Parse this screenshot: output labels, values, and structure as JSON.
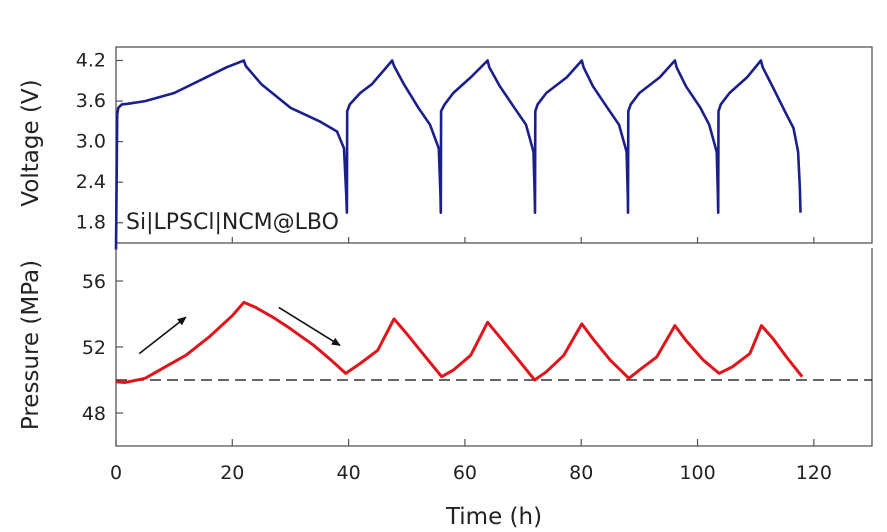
{
  "colors": {
    "voltage": "#1a1f8c",
    "pressure": "#e0151b",
    "axis": "#555555",
    "reference": "#333333"
  },
  "chart_data": [
    {
      "type": "line",
      "panel": "top",
      "xlabel": "",
      "ylabel": "Voltage (V)",
      "xlim": [
        0,
        130
      ],
      "ylim": [
        1.5,
        4.4
      ],
      "yticks": [
        1.8,
        2.4,
        3.0,
        3.6,
        4.2
      ],
      "ytick_labels": [
        "1.8",
        "2.4",
        "3.0",
        "3.6",
        "4.2"
      ],
      "annotation": "Si|LPSCl|NCM@LBO",
      "series": [
        {
          "x": [
            0.0,
            0.2,
            0.4,
            1.0,
            2.0,
            5.0,
            10.0,
            15.0,
            19.0,
            22.0,
            22.3,
            25.0,
            30.0,
            35.0,
            38.0,
            39.2,
            39.6,
            39.7,
            39.75,
            40.2,
            42.0,
            44.0,
            47.5,
            47.8,
            49.5,
            52.0,
            54.0,
            55.5,
            55.8,
            55.85,
            55.9,
            56.5,
            58.0,
            61.0,
            63.9,
            64.2,
            66.0,
            68.5,
            70.5,
            71.8,
            72.0,
            72.05,
            72.1,
            72.5,
            74.0,
            77.5,
            80.1,
            80.4,
            82.0,
            84.5,
            86.5,
            87.8,
            88.0,
            88.05,
            88.1,
            88.5,
            90.0,
            93.5,
            96.1,
            96.4,
            98.0,
            100.5,
            102.0,
            103.3,
            103.5,
            103.55,
            103.6,
            104.0,
            105.5,
            108.5,
            110.9,
            111.2,
            113.0,
            115.0,
            116.5,
            117.3,
            117.6,
            117.7
          ],
          "y": [
            1.4,
            3.4,
            3.5,
            3.55,
            3.56,
            3.6,
            3.72,
            3.93,
            4.1,
            4.2,
            4.12,
            3.85,
            3.5,
            3.3,
            3.15,
            2.9,
            2.2,
            1.95,
            3.45,
            3.55,
            3.72,
            3.85,
            4.2,
            4.12,
            3.85,
            3.5,
            3.25,
            2.9,
            2.2,
            1.95,
            3.45,
            3.55,
            3.72,
            3.95,
            4.2,
            4.1,
            3.82,
            3.5,
            3.25,
            2.85,
            2.2,
            1.95,
            3.45,
            3.55,
            3.72,
            3.95,
            4.2,
            4.1,
            3.82,
            3.5,
            3.25,
            2.85,
            2.2,
            1.95,
            3.45,
            3.55,
            3.72,
            3.95,
            4.2,
            4.1,
            3.82,
            3.5,
            3.25,
            2.85,
            2.2,
            1.95,
            3.45,
            3.55,
            3.72,
            3.95,
            4.2,
            4.1,
            3.8,
            3.45,
            3.2,
            2.85,
            2.3,
            1.95
          ]
        }
      ]
    },
    {
      "type": "line",
      "panel": "bottom",
      "xlabel": "Time (h)",
      "ylabel": "Pressure (MPa)",
      "xlim": [
        0,
        130
      ],
      "ylim": [
        46,
        58
      ],
      "xticks": [
        0,
        20,
        40,
        60,
        80,
        100,
        120
      ],
      "xtick_labels": [
        "0",
        "20",
        "40",
        "60",
        "80",
        "100",
        "120"
      ],
      "yticks": [
        48,
        52,
        56
      ],
      "ytick_labels": [
        "48",
        "52",
        "56"
      ],
      "reference_line_y": 50.0,
      "series": [
        {
          "x": [
            0,
            1.5,
            3,
            5,
            8,
            12,
            16,
            20,
            22,
            24,
            27,
            30,
            34,
            37,
            39.5,
            42,
            45,
            47.8,
            50,
            53,
            56,
            58,
            61,
            63.9,
            66,
            69,
            72,
            74,
            77,
            80.1,
            82,
            85,
            88.2,
            90,
            93,
            96.1,
            98,
            101,
            103.7,
            106,
            109,
            111,
            113,
            115.5,
            118
          ],
          "y": [
            49.9,
            49.85,
            49.95,
            50.1,
            50.7,
            51.5,
            52.6,
            53.9,
            54.7,
            54.4,
            53.8,
            53.1,
            52.1,
            51.2,
            50.4,
            51.0,
            51.8,
            53.7,
            52.8,
            51.5,
            50.2,
            50.6,
            51.5,
            53.5,
            52.6,
            51.3,
            50.0,
            50.5,
            51.5,
            53.4,
            52.5,
            51.2,
            50.1,
            50.6,
            51.4,
            53.3,
            52.4,
            51.2,
            50.4,
            50.8,
            51.6,
            53.3,
            52.5,
            51.3,
            50.2
          ]
        }
      ],
      "arrows": [
        {
          "from": [
            4,
            51.6
          ],
          "to": [
            12,
            53.8
          ]
        },
        {
          "from": [
            28,
            54.4
          ],
          "to": [
            38.5,
            52.1
          ]
        }
      ]
    }
  ]
}
